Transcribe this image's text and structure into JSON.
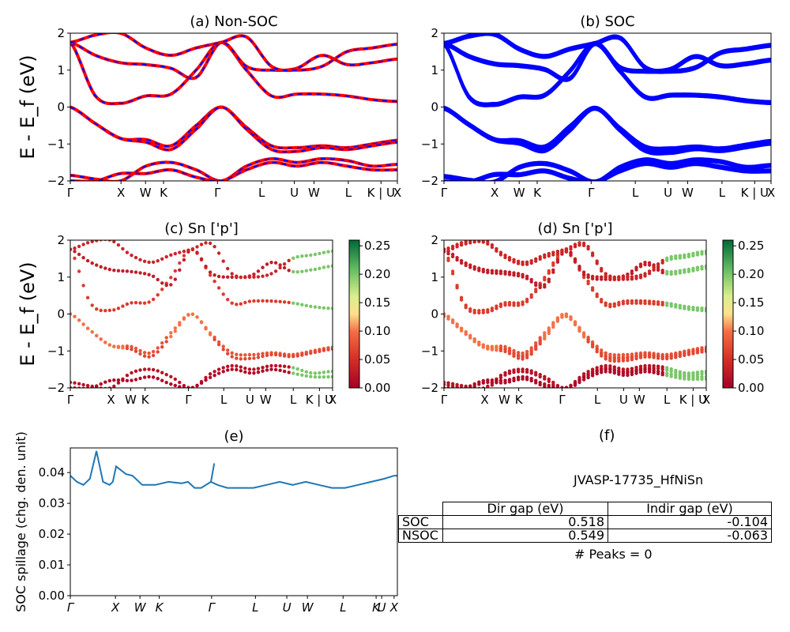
{
  "chart_data": [
    {
      "id": "a",
      "type": "line",
      "title": "(a) Non-SOC",
      "ylabel": "E - E_f (eV)",
      "ylim": [
        -2,
        2
      ],
      "yticks": [
        -2,
        -1,
        0,
        1,
        2
      ],
      "kpoints": [
        "Γ",
        "X",
        "W",
        "K",
        "Γ",
        "L",
        "U",
        "W",
        "L",
        "K | U",
        "X"
      ],
      "series_colors": [
        "#ff0000",
        "#0000ff"
      ],
      "note": "bands drawn red with blue dashed overlay",
      "bands_ev": [
        [
          0.0,
          -0.45,
          -0.85,
          -0.88,
          -1.05,
          -0.5,
          0.0,
          -0.55,
          -1.05,
          -1.1,
          -1.05,
          -1.1,
          -1.0,
          -0.9
        ],
        [
          0.0,
          -0.45,
          -0.85,
          -0.95,
          -1.15,
          -0.6,
          0.0,
          -0.6,
          -1.15,
          -1.2,
          -1.1,
          -1.15,
          -1.05,
          -0.95
        ],
        [
          -1.85,
          -1.95,
          -2.0,
          -1.6,
          -1.5,
          -1.7,
          -2.0,
          -1.6,
          -1.4,
          -1.5,
          -1.4,
          -1.45,
          -1.6,
          -1.55
        ],
        [
          -2.0,
          -2.0,
          -1.8,
          -1.8,
          -1.7,
          -1.9,
          -2.0,
          -1.7,
          -1.5,
          -1.6,
          -1.5,
          -1.6,
          -1.7,
          -1.7
        ],
        [
          1.75,
          0.3,
          0.1,
          0.3,
          0.35,
          1.0,
          1.75,
          1.0,
          0.3,
          0.35,
          0.35,
          0.3,
          0.2,
          0.15
        ],
        [
          1.75,
          1.4,
          1.2,
          1.15,
          1.05,
          0.8,
          1.75,
          1.1,
          1.0,
          1.05,
          1.4,
          1.15,
          1.2,
          1.3
        ],
        [
          1.75,
          1.95,
          2.0,
          1.6,
          1.4,
          1.6,
          1.75,
          1.9,
          1.1,
          1.0,
          1.1,
          1.5,
          1.6,
          1.7
        ]
      ]
    },
    {
      "id": "b",
      "type": "line",
      "title": "(b) SOC",
      "ylabel": "",
      "ylim": [
        -2,
        2
      ],
      "yticks": [
        -2,
        -1,
        0,
        1,
        2
      ],
      "kpoints": [
        "Γ",
        "X",
        "W",
        "K",
        "Γ",
        "L",
        "U",
        "W",
        "L",
        "K | U",
        "X"
      ],
      "series_colors": [
        "#0000ff"
      ]
    },
    {
      "id": "c",
      "type": "scatter",
      "title": "(c)  Sn ['p']",
      "ylabel": "E - E_f (eV)",
      "ylim": [
        -2,
        2
      ],
      "yticks": [
        -2,
        -1,
        0,
        1,
        2
      ],
      "kpoints": [
        "Γ",
        "X",
        "W",
        "K",
        "Γ",
        "L",
        "U",
        "W",
        "L",
        "K | U",
        "X"
      ],
      "colorbar": {
        "min": 0.0,
        "max": 0.26,
        "ticks": [
          "0.00",
          "0.05",
          "0.10",
          "0.15",
          "0.20",
          "0.25"
        ],
        "cmap": "RdYlGn"
      }
    },
    {
      "id": "d",
      "type": "scatter",
      "title": "(d) Sn ['p']",
      "ylabel": "",
      "ylim": [
        -2,
        2
      ],
      "yticks": [
        -2,
        -1,
        0,
        1,
        2
      ],
      "kpoints": [
        "Γ",
        "X",
        "W",
        "K",
        "Γ",
        "L",
        "U",
        "W",
        "L",
        "K | U",
        "X"
      ],
      "colorbar": {
        "min": 0.0,
        "max": 0.26,
        "ticks": [
          "0.00",
          "0.05",
          "0.10",
          "0.15",
          "0.20",
          "0.25"
        ],
        "cmap": "RdYlGn"
      }
    },
    {
      "id": "e",
      "type": "line",
      "title": "(e)",
      "ylabel": "SOC spillage (chg. den. unit)",
      "ylim": [
        0.0,
        0.048
      ],
      "yticks": [
        "0.00",
        "0.01",
        "0.02",
        "0.03",
        "0.04"
      ],
      "kpoints": [
        "Γ",
        "X",
        "W",
        "K",
        "Γ",
        "L",
        "U",
        "W",
        "L",
        "K",
        "U",
        "X"
      ],
      "series_colors": [
        "#1f77b4"
      ],
      "x": [
        0,
        0.02,
        0.04,
        0.06,
        0.08,
        0.1,
        0.12,
        0.13,
        0.14,
        0.17,
        0.19,
        0.22,
        0.26,
        0.3,
        0.34,
        0.36,
        0.38,
        0.4,
        0.43,
        0.44,
        0.43,
        0.45,
        0.48,
        0.5,
        0.53,
        0.56,
        0.6,
        0.64,
        0.68,
        0.72,
        0.76,
        0.8,
        0.84,
        0.88,
        0.92,
        0.96,
        0.99,
        1.0
      ],
      "values": [
        0.039,
        0.037,
        0.036,
        0.038,
        0.047,
        0.037,
        0.036,
        0.037,
        0.042,
        0.0395,
        0.039,
        0.036,
        0.036,
        0.037,
        0.0365,
        0.037,
        0.035,
        0.035,
        0.037,
        0.043,
        0.037,
        0.036,
        0.035,
        0.035,
        0.035,
        0.035,
        0.036,
        0.037,
        0.036,
        0.037,
        0.036,
        0.035,
        0.035,
        0.036,
        0.037,
        0.038,
        0.039,
        0.039
      ]
    }
  ],
  "panel_f": {
    "title": "(f)",
    "label": "JVASP-17735_HfNiSn",
    "table": {
      "headers": [
        "",
        "Dir gap (eV)",
        "Indir gap (eV)"
      ],
      "rows": [
        [
          "SOC",
          "0.518",
          "-0.104"
        ],
        [
          "NSOC",
          "0.549",
          "-0.063"
        ]
      ]
    },
    "peaks": "# Peaks = 0"
  }
}
